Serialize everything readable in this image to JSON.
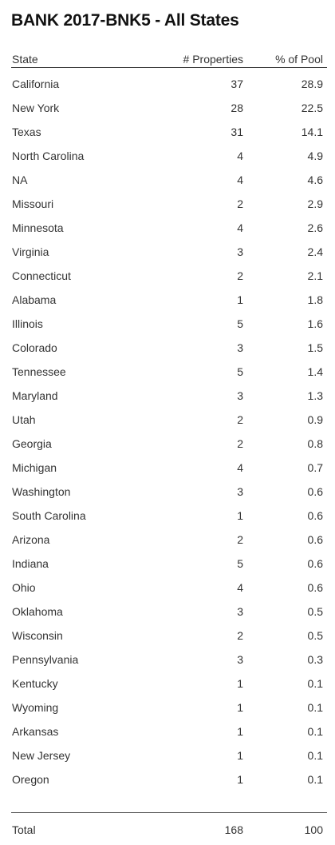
{
  "title": "BANK 2017-BNK5 - All States",
  "headers": {
    "state": "State",
    "properties": "# Properties",
    "pool": "% of Pool"
  },
  "rows": [
    {
      "state": "California",
      "properties": "37",
      "pool": "28.9"
    },
    {
      "state": "New York",
      "properties": "28",
      "pool": "22.5"
    },
    {
      "state": "Texas",
      "properties": "31",
      "pool": "14.1"
    },
    {
      "state": "North Carolina",
      "properties": "4",
      "pool": "4.9"
    },
    {
      "state": "NA",
      "properties": "4",
      "pool": "4.6"
    },
    {
      "state": "Missouri",
      "properties": "2",
      "pool": "2.9"
    },
    {
      "state": "Minnesota",
      "properties": "4",
      "pool": "2.6"
    },
    {
      "state": "Virginia",
      "properties": "3",
      "pool": "2.4"
    },
    {
      "state": "Connecticut",
      "properties": "2",
      "pool": "2.1"
    },
    {
      "state": "Alabama",
      "properties": "1",
      "pool": "1.8"
    },
    {
      "state": "Illinois",
      "properties": "5",
      "pool": "1.6"
    },
    {
      "state": "Colorado",
      "properties": "3",
      "pool": "1.5"
    },
    {
      "state": "Tennessee",
      "properties": "5",
      "pool": "1.4"
    },
    {
      "state": "Maryland",
      "properties": "3",
      "pool": "1.3"
    },
    {
      "state": "Utah",
      "properties": "2",
      "pool": "0.9"
    },
    {
      "state": "Georgia",
      "properties": "2",
      "pool": "0.8"
    },
    {
      "state": "Michigan",
      "properties": "4",
      "pool": "0.7"
    },
    {
      "state": "Washington",
      "properties": "3",
      "pool": "0.6"
    },
    {
      "state": "South Carolina",
      "properties": "1",
      "pool": "0.6"
    },
    {
      "state": "Arizona",
      "properties": "2",
      "pool": "0.6"
    },
    {
      "state": "Indiana",
      "properties": "5",
      "pool": "0.6"
    },
    {
      "state": "Ohio",
      "properties": "4",
      "pool": "0.6"
    },
    {
      "state": "Oklahoma",
      "properties": "3",
      "pool": "0.5"
    },
    {
      "state": "Wisconsin",
      "properties": "2",
      "pool": "0.5"
    },
    {
      "state": "Pennsylvania",
      "properties": "3",
      "pool": "0.3"
    },
    {
      "state": "Kentucky",
      "properties": "1",
      "pool": "0.1"
    },
    {
      "state": "Wyoming",
      "properties": "1",
      "pool": "0.1"
    },
    {
      "state": "Arkansas",
      "properties": "1",
      "pool": "0.1"
    },
    {
      "state": "New Jersey",
      "properties": "1",
      "pool": "0.1"
    },
    {
      "state": "Oregon",
      "properties": "1",
      "pool": "0.1"
    }
  ],
  "total": {
    "label": "Total",
    "properties": "168",
    "pool": "100"
  }
}
